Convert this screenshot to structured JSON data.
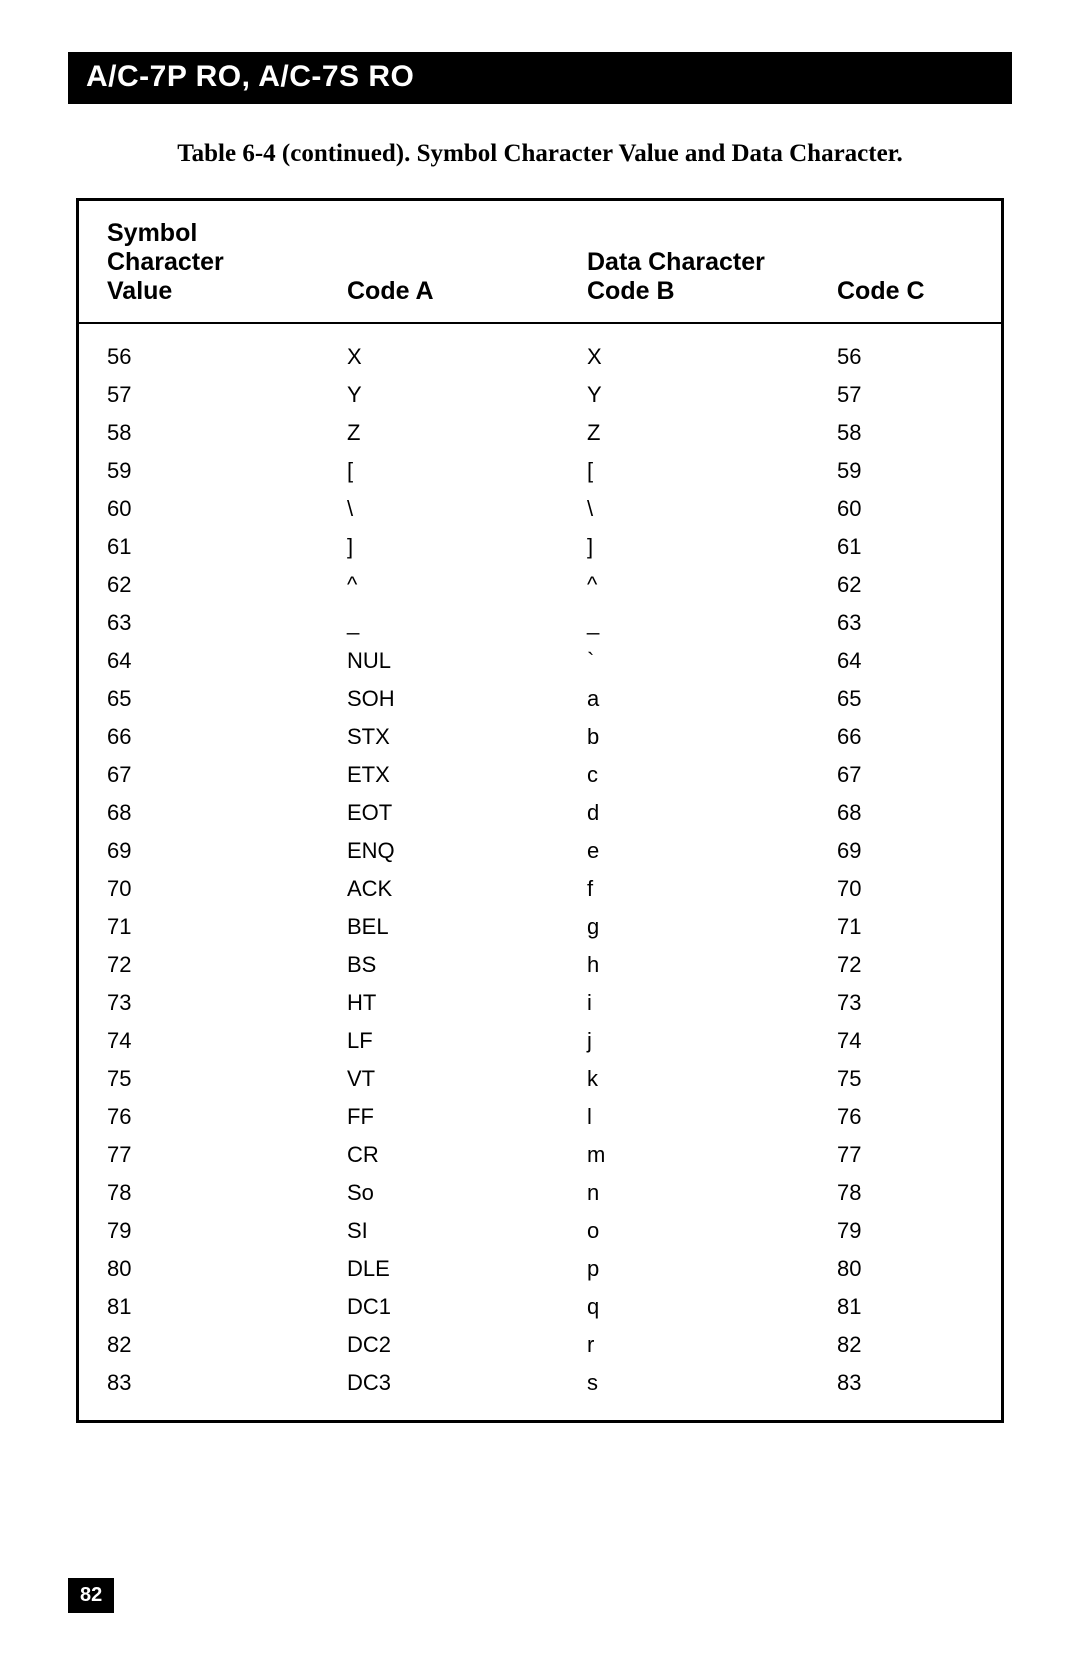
{
  "header_title": "A/C-7P RO, A/C-7S RO",
  "caption": "Table 6-4 (continued). Symbol Character Value and Data Character.",
  "page_number": "82",
  "table": {
    "header": {
      "col1_line1": "Symbol",
      "col1_line2": "Character",
      "col1_line3": "Value",
      "col2_line3": "Code A",
      "col3_line2": "Data Character",
      "col3_line3": "Code B",
      "col4_line3": "Code C"
    },
    "rows": [
      {
        "value": "56",
        "code_a": "X",
        "code_b": "X",
        "code_c": "56"
      },
      {
        "value": "57",
        "code_a": "Y",
        "code_b": "Y",
        "code_c": "57"
      },
      {
        "value": "58",
        "code_a": "Z",
        "code_b": "Z",
        "code_c": "58"
      },
      {
        "value": "59",
        "code_a": "[",
        "code_b": "[",
        "code_c": "59"
      },
      {
        "value": "60",
        "code_a": "\\",
        "code_b": "\\",
        "code_c": "60"
      },
      {
        "value": "61",
        "code_a": "]",
        "code_b": "]",
        "code_c": "61"
      },
      {
        "value": "62",
        "code_a": "^",
        "code_b": "^",
        "code_c": "62"
      },
      {
        "value": "63",
        "code_a": "_",
        "code_b": "_",
        "code_c": "63"
      },
      {
        "value": "64",
        "code_a": "NUL",
        "code_b": "`",
        "code_c": "64"
      },
      {
        "value": "65",
        "code_a": "SOH",
        "code_b": "a",
        "code_c": "65"
      },
      {
        "value": "66",
        "code_a": "STX",
        "code_b": "b",
        "code_c": "66"
      },
      {
        "value": "67",
        "code_a": "ETX",
        "code_b": "c",
        "code_c": "67"
      },
      {
        "value": "68",
        "code_a": "EOT",
        "code_b": "d",
        "code_c": "68"
      },
      {
        "value": "69",
        "code_a": "ENQ",
        "code_b": "e",
        "code_c": "69"
      },
      {
        "value": "70",
        "code_a": "ACK",
        "code_b": "f",
        "code_c": "70"
      },
      {
        "value": "71",
        "code_a": "BEL",
        "code_b": "g",
        "code_c": "71"
      },
      {
        "value": "72",
        "code_a": "BS",
        "code_b": "h",
        "code_c": "72"
      },
      {
        "value": "73",
        "code_a": "HT",
        "code_b": "i",
        "code_c": "73"
      },
      {
        "value": "74",
        "code_a": "LF",
        "code_b": "j",
        "code_c": "74"
      },
      {
        "value": "75",
        "code_a": "VT",
        "code_b": "k",
        "code_c": "75"
      },
      {
        "value": "76",
        "code_a": "FF",
        "code_b": "l",
        "code_c": "76"
      },
      {
        "value": "77",
        "code_a": "CR",
        "code_b": "m",
        "code_c": "77"
      },
      {
        "value": "78",
        "code_a": "So",
        "code_b": "n",
        "code_c": "78"
      },
      {
        "value": "79",
        "code_a": "SI",
        "code_b": "o",
        "code_c": "79"
      },
      {
        "value": "80",
        "code_a": "DLE",
        "code_b": "p",
        "code_c": "80"
      },
      {
        "value": "81",
        "code_a": "DC1",
        "code_b": "q",
        "code_c": "81"
      },
      {
        "value": "82",
        "code_a": "DC2",
        "code_b": "r",
        "code_c": "82"
      },
      {
        "value": "83",
        "code_a": "DC3",
        "code_b": "s",
        "code_c": "83"
      }
    ]
  },
  "colors": {
    "background": "#ffffff",
    "text": "#000000",
    "bar_bg": "#000000",
    "bar_text": "#ffffff",
    "border": "#000000"
  },
  "typography": {
    "header_bar_fontsize": 30,
    "caption_fontsize": 25,
    "table_header_fontsize": 25,
    "table_body_fontsize": 22,
    "page_number_fontsize": 20
  }
}
